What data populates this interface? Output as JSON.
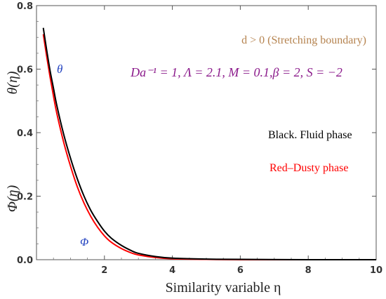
{
  "chart_data": {
    "type": "line",
    "xlabel": "Similarity variable η",
    "ylabel_top": "θ(η)",
    "ylabel_bottom": "Φ(η)",
    "xlim": [
      0,
      10
    ],
    "ylim": [
      0,
      0.8
    ],
    "xticks": [
      2,
      4,
      6,
      8,
      10
    ],
    "yticks": [
      0.0,
      0.2,
      0.4,
      0.6,
      0.8
    ],
    "grid": false,
    "series": [
      {
        "name": "Black. Fluid phase",
        "color": "#000000",
        "x": [
          0.2,
          0.3,
          0.4,
          0.5,
          0.6,
          0.8,
          1.0,
          1.2,
          1.4,
          1.6,
          1.8,
          2.0,
          2.2,
          2.5,
          2.8,
          3.0,
          3.5,
          4.0,
          5.0,
          6.0,
          8.0,
          10.0
        ],
        "y": [
          0.73,
          0.66,
          0.595,
          0.54,
          0.485,
          0.395,
          0.32,
          0.255,
          0.2,
          0.155,
          0.12,
          0.09,
          0.068,
          0.045,
          0.028,
          0.02,
          0.01,
          0.005,
          0.002,
          0.001,
          0.0,
          0.0
        ]
      },
      {
        "name": "Red–Dusty phase",
        "color": "#ff0000",
        "x": [
          0.2,
          0.3,
          0.4,
          0.5,
          0.6,
          0.8,
          1.0,
          1.2,
          1.4,
          1.6,
          1.8,
          2.0,
          2.2,
          2.5,
          2.8,
          3.0,
          3.5,
          4.0,
          5.0,
          6.0,
          8.0,
          10.0
        ],
        "y": [
          0.71,
          0.64,
          0.575,
          0.515,
          0.46,
          0.37,
          0.295,
          0.23,
          0.178,
          0.136,
          0.102,
          0.075,
          0.055,
          0.035,
          0.021,
          0.015,
          0.007,
          0.003,
          0.001,
          0.0,
          0.0,
          0.0
        ]
      }
    ],
    "annotations": {
      "stretching": "d > 0 (Stretching boundary)",
      "params": "Da⁻¹ = 1, Λ = 2.1, M = 0.1,β = 2, S = −2",
      "theta_label": "θ",
      "phi_label": "Φ",
      "legend_black": "Black. Fluid phase",
      "legend_red": "Red–Dusty phase"
    },
    "colors": {
      "annotation_brown": "#b5834f",
      "annotation_purple": "#8b1a8b",
      "curve_label_blue": "#1f3fbf"
    }
  }
}
